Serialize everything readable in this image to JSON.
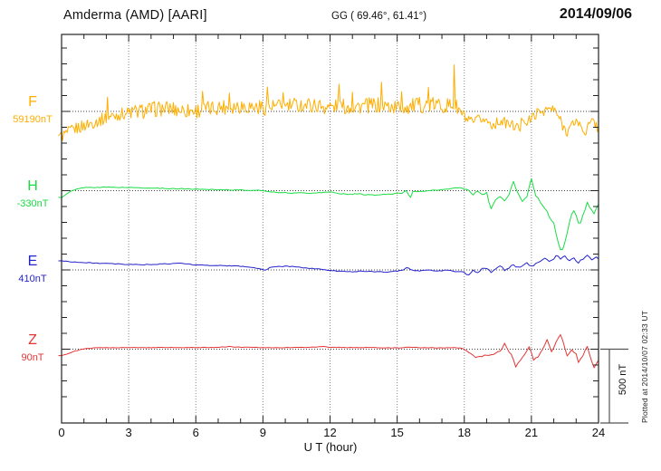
{
  "header": {
    "title": "Amderma (AMD)  [AARI]",
    "coords": "GG ( 69.46°,  61.41°)",
    "date": "2014/09/06"
  },
  "footer": {
    "xlabel": "U T (hour)",
    "plotted_note": "Plotted at 2014/10/07 02:33 UT"
  },
  "scale_bar": {
    "label": "500 nT",
    "nT": 500
  },
  "colors": {
    "F": "#ffae00",
    "H": "#19dd43",
    "E": "#2323cc",
    "Z": "#e43535",
    "frame": "#222222",
    "grid": "#888888",
    "baseline_dots": "#444444"
  },
  "chart_data": {
    "type": "line",
    "title": "Amderma (AMD) [AARI] magnetogram, 2014/09/06",
    "xlabel": "U T (hour)",
    "x_range": [
      0,
      24
    ],
    "x_ticks": [
      0,
      3,
      6,
      9,
      12,
      15,
      18,
      21,
      24
    ],
    "x_minor_step_hours": 1,
    "grid": "dotted vertical gridlines every 3 h; dotted horizontal baseline per component",
    "nT_per_division": 100,
    "scale_bar_nT": 500,
    "legend_position": "left margin, one colored label per component",
    "series": [
      {
        "name": "F",
        "label": "F",
        "baseline_label": "59190nT",
        "baseline_nT": 59190,
        "samples_per_hour": 20,
        "noise_segments": [
          [
            0,
            3,
            40
          ],
          [
            3,
            18,
            50
          ],
          [
            18,
            24,
            33
          ]
        ],
        "anchors_hour_offsetnT": [
          [
            0,
            -155
          ],
          [
            0.3,
            -135
          ],
          [
            0.6,
            -110
          ],
          [
            1,
            -90
          ],
          [
            1.4,
            -70
          ],
          [
            1.8,
            -50
          ],
          [
            2.0,
            -40
          ],
          [
            2.05,
            85
          ],
          [
            2.1,
            -35
          ],
          [
            2.6,
            -18
          ],
          [
            3,
            -8
          ],
          [
            3.5,
            0
          ],
          [
            4,
            12
          ],
          [
            4.5,
            18
          ],
          [
            5,
            15
          ],
          [
            5.5,
            8
          ],
          [
            6,
            5
          ],
          [
            6.25,
            10
          ],
          [
            6.3,
            140
          ],
          [
            6.35,
            10
          ],
          [
            6.8,
            20
          ],
          [
            7,
            30
          ],
          [
            7.45,
            30
          ],
          [
            7.5,
            130
          ],
          [
            7.55,
            30
          ],
          [
            8,
            38
          ],
          [
            8.5,
            30
          ],
          [
            9,
            25
          ],
          [
            9.15,
            25
          ],
          [
            9.2,
            170
          ],
          [
            9.25,
            25
          ],
          [
            9.5,
            30
          ],
          [
            9.85,
            30
          ],
          [
            9.9,
            150
          ],
          [
            9.95,
            30
          ],
          [
            10.5,
            40
          ],
          [
            11,
            42
          ],
          [
            11.5,
            35
          ],
          [
            12,
            28
          ],
          [
            12.35,
            30
          ],
          [
            12.4,
            215
          ],
          [
            12.45,
            30
          ],
          [
            12.95,
            30
          ],
          [
            13,
            150
          ],
          [
            13.05,
            30
          ],
          [
            13.5,
            35
          ],
          [
            14,
            40
          ],
          [
            14.25,
            35
          ],
          [
            14.3,
            160
          ],
          [
            14.35,
            35
          ],
          [
            15,
            25
          ],
          [
            15.15,
            25
          ],
          [
            15.2,
            150
          ],
          [
            15.25,
            25
          ],
          [
            16,
            40
          ],
          [
            16.35,
            40
          ],
          [
            16.4,
            145
          ],
          [
            16.45,
            40
          ],
          [
            17,
            40
          ],
          [
            17.3,
            35
          ],
          [
            17.5,
            40
          ],
          [
            17.55,
            315
          ],
          [
            17.6,
            30
          ],
          [
            17.7,
            20
          ],
          [
            17.9,
            -20
          ],
          [
            18.1,
            -55
          ],
          [
            18.4,
            -75
          ],
          [
            18.7,
            -45
          ],
          [
            19,
            -60
          ],
          [
            19.3,
            -85
          ],
          [
            19.6,
            -60
          ],
          [
            19.9,
            -75
          ],
          [
            20.2,
            -90
          ],
          [
            20.5,
            -110
          ],
          [
            20.6,
            -30
          ],
          [
            20.8,
            -70
          ],
          [
            21,
            -45
          ],
          [
            21.2,
            -15
          ],
          [
            21.5,
            5
          ],
          [
            21.8,
            15
          ],
          [
            22,
            10
          ],
          [
            22.2,
            -30
          ],
          [
            22.4,
            -90
          ],
          [
            22.6,
            -125
          ],
          [
            22.8,
            -90
          ],
          [
            23,
            -55
          ],
          [
            23.2,
            -95
          ],
          [
            23.4,
            -130
          ],
          [
            23.6,
            -80
          ],
          [
            23.8,
            -60
          ],
          [
            24,
            -115
          ]
        ]
      },
      {
        "name": "H",
        "label": "H",
        "baseline_label": "-330nT",
        "baseline_nT": -330,
        "samples_per_hour": 10,
        "noise_segments": [
          [
            0,
            18,
            2.5
          ],
          [
            18,
            24,
            7
          ]
        ],
        "anchors_hour_offsetnT": [
          [
            0,
            -42
          ],
          [
            0.2,
            -25
          ],
          [
            0.4,
            -5
          ],
          [
            0.7,
            10
          ],
          [
            1,
            20
          ],
          [
            2,
            22
          ],
          [
            3,
            20
          ],
          [
            4,
            16
          ],
          [
            5,
            13
          ],
          [
            6,
            10
          ],
          [
            7,
            7
          ],
          [
            8,
            4
          ],
          [
            9,
            0
          ],
          [
            9.3,
            -6
          ],
          [
            9.6,
            -10
          ],
          [
            10,
            -13
          ],
          [
            10.4,
            -16
          ],
          [
            10.8,
            -12
          ],
          [
            11.2,
            -17
          ],
          [
            11.6,
            -12
          ],
          [
            12,
            -8
          ],
          [
            12.4,
            -18
          ],
          [
            12.8,
            -24
          ],
          [
            13.2,
            -20
          ],
          [
            13.6,
            -26
          ],
          [
            14,
            -28
          ],
          [
            14.4,
            -24
          ],
          [
            14.8,
            -20
          ],
          [
            15.2,
            -15
          ],
          [
            15.45,
            8
          ],
          [
            15.55,
            -60
          ],
          [
            15.7,
            -8
          ],
          [
            16,
            -4
          ],
          [
            16.5,
            0
          ],
          [
            17,
            6
          ],
          [
            17.3,
            10
          ],
          [
            17.6,
            16
          ],
          [
            17.8,
            20
          ],
          [
            18,
            8
          ],
          [
            18.2,
            0
          ],
          [
            18.4,
            -20
          ],
          [
            18.6,
            -10
          ],
          [
            18.8,
            -25
          ],
          [
            19,
            -15
          ],
          [
            19.2,
            -115
          ],
          [
            19.35,
            -70
          ],
          [
            19.6,
            -40
          ],
          [
            19.8,
            -60
          ],
          [
            20,
            -30
          ],
          [
            20.2,
            58
          ],
          [
            20.4,
            -20
          ],
          [
            20.6,
            -75
          ],
          [
            20.8,
            -35
          ],
          [
            21,
            78
          ],
          [
            21.2,
            -30
          ],
          [
            21.5,
            -90
          ],
          [
            21.8,
            -160
          ],
          [
            22,
            -210
          ],
          [
            22.2,
            -330
          ],
          [
            22.35,
            -385
          ],
          [
            22.5,
            -325
          ],
          [
            22.7,
            -200
          ],
          [
            22.85,
            -120
          ],
          [
            23,
            -155
          ],
          [
            23.15,
            -235
          ],
          [
            23.3,
            -160
          ],
          [
            23.5,
            -70
          ],
          [
            23.65,
            -115
          ],
          [
            23.8,
            -150
          ],
          [
            23.9,
            -105
          ],
          [
            24,
            -85
          ]
        ]
      },
      {
        "name": "E",
        "label": "E",
        "baseline_label": "410nT",
        "baseline_nT": 410,
        "samples_per_hour": 10,
        "noise_segments": [
          [
            0,
            18,
            2.5
          ],
          [
            18,
            24,
            6
          ]
        ],
        "anchors_hour_offsetnT": [
          [
            0,
            57
          ],
          [
            0.5,
            51
          ],
          [
            1,
            46
          ],
          [
            1.5,
            43
          ],
          [
            2,
            40
          ],
          [
            2.5,
            37
          ],
          [
            3,
            34
          ],
          [
            3.5,
            34
          ],
          [
            4,
            34
          ],
          [
            4.5,
            37
          ],
          [
            5,
            40
          ],
          [
            5.3,
            43
          ],
          [
            5.6,
            37
          ],
          [
            6,
            31
          ],
          [
            6.5,
            29
          ],
          [
            7,
            29
          ],
          [
            7.5,
            26
          ],
          [
            8,
            23
          ],
          [
            8.5,
            17
          ],
          [
            9,
            3
          ],
          [
            9.15,
            -3
          ],
          [
            9.3,
            14
          ],
          [
            9.6,
            20
          ],
          [
            10,
            23
          ],
          [
            10.4,
            20
          ],
          [
            10.8,
            14
          ],
          [
            11.2,
            9
          ],
          [
            11.6,
            3
          ],
          [
            12,
            -3
          ],
          [
            12.5,
            -9
          ],
          [
            13,
            -11
          ],
          [
            13.5,
            -7
          ],
          [
            14,
            -11
          ],
          [
            14.5,
            -13
          ],
          [
            15,
            -7
          ],
          [
            15.3,
            0
          ],
          [
            15.45,
            17
          ],
          [
            15.6,
            0
          ],
          [
            16,
            -7
          ],
          [
            16.4,
            0
          ],
          [
            16.8,
            -7
          ],
          [
            17.2,
            -3
          ],
          [
            17.6,
            -9
          ],
          [
            18,
            -13
          ],
          [
            18.2,
            -34
          ],
          [
            18.4,
            -6
          ],
          [
            18.6,
            -23
          ],
          [
            18.8,
            6
          ],
          [
            19,
            14
          ],
          [
            19.2,
            -11
          ],
          [
            19.4,
            9
          ],
          [
            19.6,
            23
          ],
          [
            19.8,
            0
          ],
          [
            20,
            11
          ],
          [
            20.2,
            34
          ],
          [
            20.4,
            14
          ],
          [
            20.6,
            29
          ],
          [
            20.8,
            46
          ],
          [
            21,
            23
          ],
          [
            21.2,
            40
          ],
          [
            21.4,
            57
          ],
          [
            21.6,
            80
          ],
          [
            21.8,
            51
          ],
          [
            22,
            69
          ],
          [
            22.15,
            103
          ],
          [
            22.3,
            63
          ],
          [
            22.5,
            91
          ],
          [
            22.7,
            57
          ],
          [
            22.9,
            74
          ],
          [
            23.1,
            46
          ],
          [
            23.3,
            69
          ],
          [
            23.5,
            91
          ],
          [
            23.7,
            63
          ],
          [
            23.9,
            80
          ],
          [
            24,
            74
          ]
        ]
      },
      {
        "name": "Z",
        "label": "Z",
        "baseline_label": "90nT",
        "baseline_nT": 90,
        "samples_per_hour": 10,
        "noise_segments": [
          [
            0,
            18,
            1.5
          ],
          [
            18,
            24,
            5
          ]
        ],
        "anchors_hour_offsetnT": [
          [
            0,
            -40
          ],
          [
            0.3,
            -28
          ],
          [
            0.6,
            -12
          ],
          [
            1,
            2
          ],
          [
            1.5,
            8
          ],
          [
            2,
            10
          ],
          [
            3,
            10
          ],
          [
            4,
            10
          ],
          [
            5,
            10
          ],
          [
            6,
            10
          ],
          [
            7,
            12
          ],
          [
            7.5,
            16
          ],
          [
            8,
            12
          ],
          [
            9,
            10
          ],
          [
            10,
            10
          ],
          [
            11,
            12
          ],
          [
            11.7,
            16
          ],
          [
            12,
            12
          ],
          [
            13,
            10
          ],
          [
            14,
            10
          ],
          [
            15,
            8
          ],
          [
            15.5,
            12
          ],
          [
            16,
            10
          ],
          [
            17,
            8
          ],
          [
            17.5,
            10
          ],
          [
            17.9,
            6
          ],
          [
            18.1,
            -10
          ],
          [
            18.3,
            -30
          ],
          [
            18.5,
            -57
          ],
          [
            18.7,
            -46
          ],
          [
            19,
            -40
          ],
          [
            19.3,
            -30
          ],
          [
            19.6,
            -14
          ],
          [
            19.8,
            34
          ],
          [
            20,
            -20
          ],
          [
            20.15,
            -40
          ],
          [
            20.3,
            -108
          ],
          [
            20.5,
            -70
          ],
          [
            20.7,
            -30
          ],
          [
            20.9,
            17
          ],
          [
            21.1,
            -69
          ],
          [
            21.3,
            -46
          ],
          [
            21.5,
            0
          ],
          [
            21.7,
            63
          ],
          [
            21.9,
            -20
          ],
          [
            22.1,
            40
          ],
          [
            22.3,
            91
          ],
          [
            22.5,
            10
          ],
          [
            22.6,
            -40
          ],
          [
            22.8,
            -5
          ],
          [
            23,
            -30
          ],
          [
            23.1,
            -80
          ],
          [
            23.3,
            -40
          ],
          [
            23.5,
            17
          ],
          [
            23.65,
            -60
          ],
          [
            23.8,
            -120
          ],
          [
            24,
            -74
          ]
        ]
      }
    ]
  }
}
